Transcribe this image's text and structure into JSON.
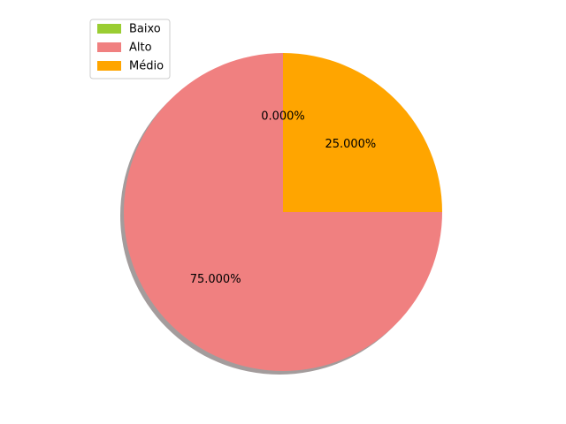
{
  "chart_data": {
    "type": "pie",
    "title": "",
    "slices": [
      {
        "label": "Baixo",
        "value": 0,
        "pct_label": "0.000%",
        "color": "#9acd32"
      },
      {
        "label": "Alto",
        "value": 75,
        "pct_label": "75.000%",
        "color": "#f08080"
      },
      {
        "label": "Médio",
        "value": 25,
        "pct_label": "25.000%",
        "color": "#ffa500"
      }
    ],
    "start_angle_deg": 90,
    "direction": "counterclockwise",
    "shadow": true,
    "shadow_color": "#a39c9c",
    "legend_placement": "upper-left"
  }
}
